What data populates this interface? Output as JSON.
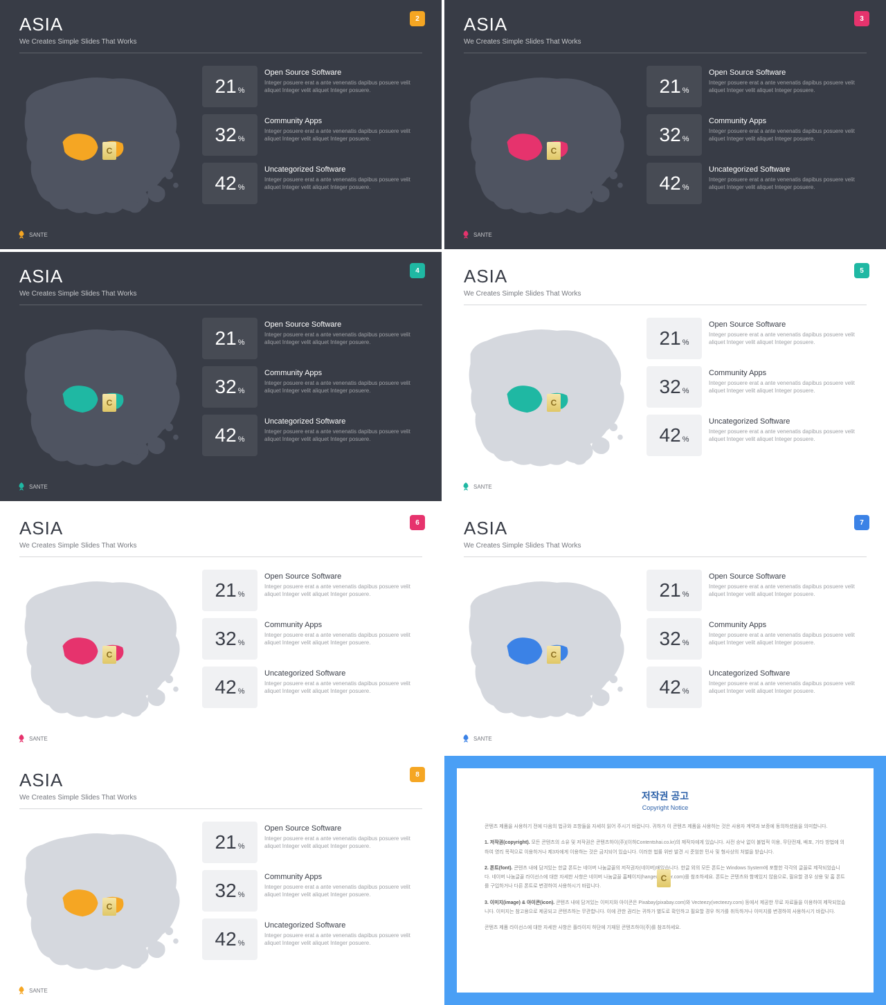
{
  "common": {
    "title": "ASIA",
    "subtitle": "We Creates Simple Slides That Works",
    "footer": "SANTE",
    "stat_desc": "Integer posuere erat a ante venenatis dapibus posuere velit aliquet Integer velit aliquet Integer posuere.",
    "stats": [
      {
        "value": "21",
        "unit": "%",
        "title": "Open Source Software"
      },
      {
        "value": "32",
        "unit": "%",
        "title": "Community Apps"
      },
      {
        "value": "42",
        "unit": "%",
        "title": "Uncategorized Software"
      }
    ]
  },
  "slides": [
    {
      "num": "2",
      "theme": "dark",
      "accent": "#f5a623",
      "badge_bg": "#f5a623",
      "map_base": "#4f5461",
      "highlight": "#f5a623"
    },
    {
      "num": "3",
      "theme": "dark",
      "accent": "#e6336d",
      "badge_bg": "#e6336d",
      "map_base": "#4f5461",
      "highlight": "#e6336d"
    },
    {
      "num": "4",
      "theme": "dark",
      "accent": "#1fb8a3",
      "badge_bg": "#1fb8a3",
      "map_base": "#4f5461",
      "highlight": "#1fb8a3"
    },
    {
      "num": "5",
      "theme": "light",
      "accent": "#1fb8a3",
      "badge_bg": "#1fb8a3",
      "map_base": "#d5d8de",
      "highlight": "#1fb8a3"
    },
    {
      "num": "6",
      "theme": "light",
      "accent": "#e6336d",
      "badge_bg": "#e6336d",
      "map_base": "#d5d8de",
      "highlight": "#e6336d"
    },
    {
      "num": "7",
      "theme": "light",
      "accent": "#3b82e6",
      "badge_bg": "#3b82e6",
      "map_base": "#d5d8de",
      "highlight": "#3b82e6"
    },
    {
      "num": "8",
      "theme": "light",
      "accent": "#f5a623",
      "badge_bg": "#f5a623",
      "map_base": "#d5d8de",
      "highlight": "#f5a623"
    }
  ],
  "notice": {
    "border_color": "#4a9ff5",
    "title": "저작권 공고",
    "subtitle": "Copyright Notice",
    "p1": "콘텐츠 제품을 사용하기 전에 다음의 법규와 조항들을 자세히 읽어 주시기 바랍니다. 귀하가 이 콘텐츠 제품을 사용하는 것은 사용자 계약과 보증에 동의하셨음을 의미합니다.",
    "p2_label": "1. 저작권(copyright).",
    "p2": "모든 콘텐츠의 소유 및 저작권은 콘텐츠하이(주)(이하Contentshai.co.kr)의 제작자에게 있습니다. 사전 승낙 없이 불법적 이용, 무단전재, 배포, 기타 방법에 의하여 영리 목적으로 이용하거나 제3자에게 이용하는 것은 금지되어 있습니다. 이러한 법률 위반 발견 시 준엄한 민사 및 형사상의 처벌을 받습니다.",
    "p3_label": "2. 폰트(font).",
    "p3": "콘텐츠 내에 담겨있는 한글 폰트는 네이버 나눔글꼴의 저작권자(네이버)에있습니다. 한글 외의 모든 폰트는 Windows System에 포함한 각각의 글꼴로 제작되었습니다. 네이버 나눔글꼴 라이선스에 대한 자세한 사항은 네이버 나눔글꼴 홈페이지(hangeul.naver.com)를 참조하세요. 폰트는 콘텐츠와 함께있지 않음으로, 필요할 경우 상용 및 홈 폰트를 구입하거나 다른 폰트로 변경하여 사용하시기 바랍니다.",
    "p4_label": "3. 이미지(image) & 아이콘(icon).",
    "p4": "콘텐츠 내에 담겨있는 이미지와 아이콘은 Pixabay(pixabay.com)와 Vecteezy(vecteezy.com) 등에서 제공한 무료 자료들을 이용하여 제작되었습니다. 이미지는 참고용으로 제공되고 콘텐츠하는 무관합니다. 이에 관한 권리는 귀하가 별도로 확인하고 필요할 경우 허가를 취득하거나 이미지를 변경하여 사용하시기 바랍니다.",
    "p5": "콘텐츠 제품 라이선스에 대한 자세한 사항은 플라이지 하단에 기재된 콘텐츠하이(주)를 참조하세요."
  }
}
